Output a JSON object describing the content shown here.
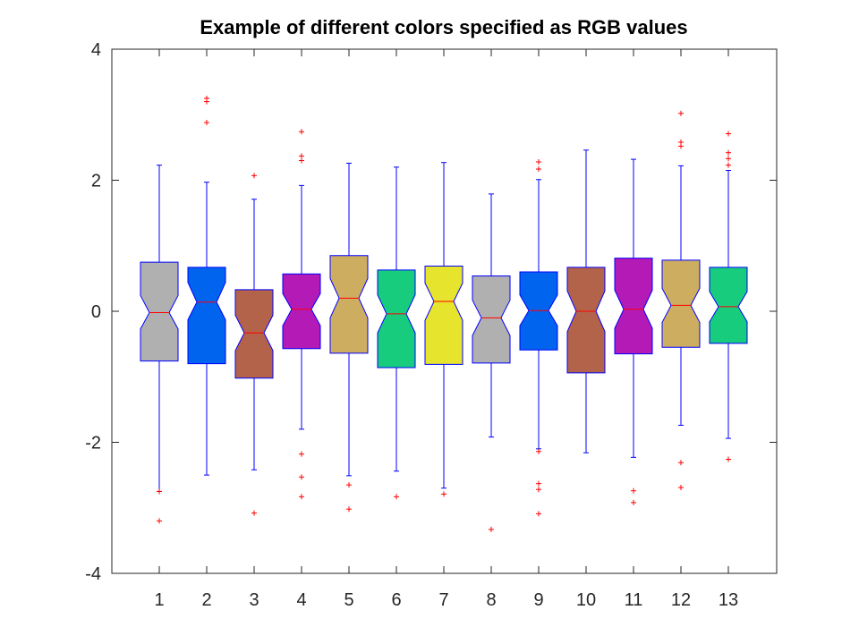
{
  "chart_data": {
    "type": "box",
    "title": "Example of different colors specified as RGB values",
    "xlabel": "",
    "ylabel": "",
    "ylim": [
      -4,
      4
    ],
    "yticks": [
      -4,
      -2,
      0,
      2,
      4
    ],
    "ytick_labels": [
      "-4",
      "-2",
      "0",
      "2",
      "4"
    ],
    "notched": true,
    "grid": false,
    "whisker_color": "#0000ff",
    "median_color": "#ff0000",
    "outlier_color": "#ff0000",
    "outlier_marker": "+",
    "boxes": [
      {
        "label": "1",
        "color": "#b0b0b0",
        "q1": -0.76,
        "median": -0.02,
        "q3": 0.75,
        "whisker_low": -2.75,
        "whisker_high": 2.23,
        "notch_low": -0.27,
        "notch_high": 0.24,
        "outliers": [
          -2.75,
          -3.2
        ]
      },
      {
        "label": "2",
        "color": "#0064ef",
        "q1": -0.8,
        "median": 0.14,
        "q3": 0.67,
        "whisker_low": -2.5,
        "whisker_high": 1.97,
        "notch_low": -0.13,
        "notch_high": 0.44,
        "outliers": [
          2.88,
          3.2,
          3.25
        ]
      },
      {
        "label": "3",
        "color": "#b3634a",
        "q1": -1.02,
        "median": -0.33,
        "q3": 0.33,
        "whisker_low": -2.42,
        "whisker_high": 1.71,
        "notch_low": -0.6,
        "notch_high": -0.06,
        "outliers": [
          2.07,
          -3.08
        ]
      },
      {
        "label": "4",
        "color": "#b41ab5",
        "q1": -0.57,
        "median": 0.03,
        "q3": 0.57,
        "whisker_low": -1.8,
        "whisker_high": 1.92,
        "notch_low": -0.22,
        "notch_high": 0.27,
        "outliers": [
          2.74,
          2.37,
          2.3,
          -2.18,
          -2.53,
          -2.83
        ]
      },
      {
        "label": "5",
        "color": "#cdae61",
        "q1": -0.64,
        "median": 0.2,
        "q3": 0.85,
        "whisker_low": -2.51,
        "whisker_high": 2.26,
        "notch_low": -0.1,
        "notch_high": 0.5,
        "outliers": [
          -2.65,
          -3.02
        ]
      },
      {
        "label": "6",
        "color": "#18cc7e",
        "q1": -0.86,
        "median": -0.04,
        "q3": 0.63,
        "whisker_low": -2.44,
        "whisker_high": 2.2,
        "notch_low": -0.33,
        "notch_high": 0.25,
        "outliers": [
          -2.83
        ]
      },
      {
        "label": "7",
        "color": "#e6e42d",
        "q1": -0.81,
        "median": 0.15,
        "q3": 0.69,
        "whisker_low": -2.7,
        "whisker_high": 2.27,
        "notch_low": -0.14,
        "notch_high": 0.43,
        "outliers": [
          -2.79
        ]
      },
      {
        "label": "8",
        "color": "#b0b0b0",
        "q1": -0.79,
        "median": -0.1,
        "q3": 0.54,
        "whisker_low": -1.92,
        "whisker_high": 1.79,
        "notch_low": -0.37,
        "notch_high": 0.17,
        "outliers": [
          -3.33
        ]
      },
      {
        "label": "9",
        "color": "#0064ef",
        "q1": -0.59,
        "median": 0.01,
        "q3": 0.6,
        "whisker_low": -2.1,
        "whisker_high": 2.01,
        "notch_low": -0.22,
        "notch_high": 0.25,
        "outliers": [
          2.28,
          2.17,
          -2.14,
          -2.63,
          -2.72,
          -3.09
        ]
      },
      {
        "label": "10",
        "color": "#b3634a",
        "q1": -0.94,
        "median": 0.0,
        "q3": 0.67,
        "whisker_low": -2.16,
        "whisker_high": 2.46,
        "notch_low": -0.31,
        "notch_high": 0.31,
        "outliers": []
      },
      {
        "label": "11",
        "color": "#b41ab5",
        "q1": -0.65,
        "median": 0.03,
        "q3": 0.81,
        "whisker_low": -2.23,
        "whisker_high": 2.32,
        "notch_low": -0.26,
        "notch_high": 0.32,
        "outliers": [
          -2.74,
          -2.92
        ]
      },
      {
        "label": "12",
        "color": "#cdae61",
        "q1": -0.55,
        "median": 0.09,
        "q3": 0.78,
        "whisker_low": -1.74,
        "whisker_high": 2.22,
        "notch_low": -0.17,
        "notch_high": 0.35,
        "outliers": [
          3.02,
          2.58,
          2.52,
          -2.31,
          -2.69
        ]
      },
      {
        "label": "13",
        "color": "#18cc7e",
        "q1": -0.49,
        "median": 0.07,
        "q3": 0.67,
        "whisker_low": -1.94,
        "whisker_high": 2.15,
        "notch_low": -0.16,
        "notch_high": 0.3,
        "outliers": [
          2.71,
          2.42,
          2.33,
          2.23,
          -2.26
        ]
      }
    ]
  }
}
